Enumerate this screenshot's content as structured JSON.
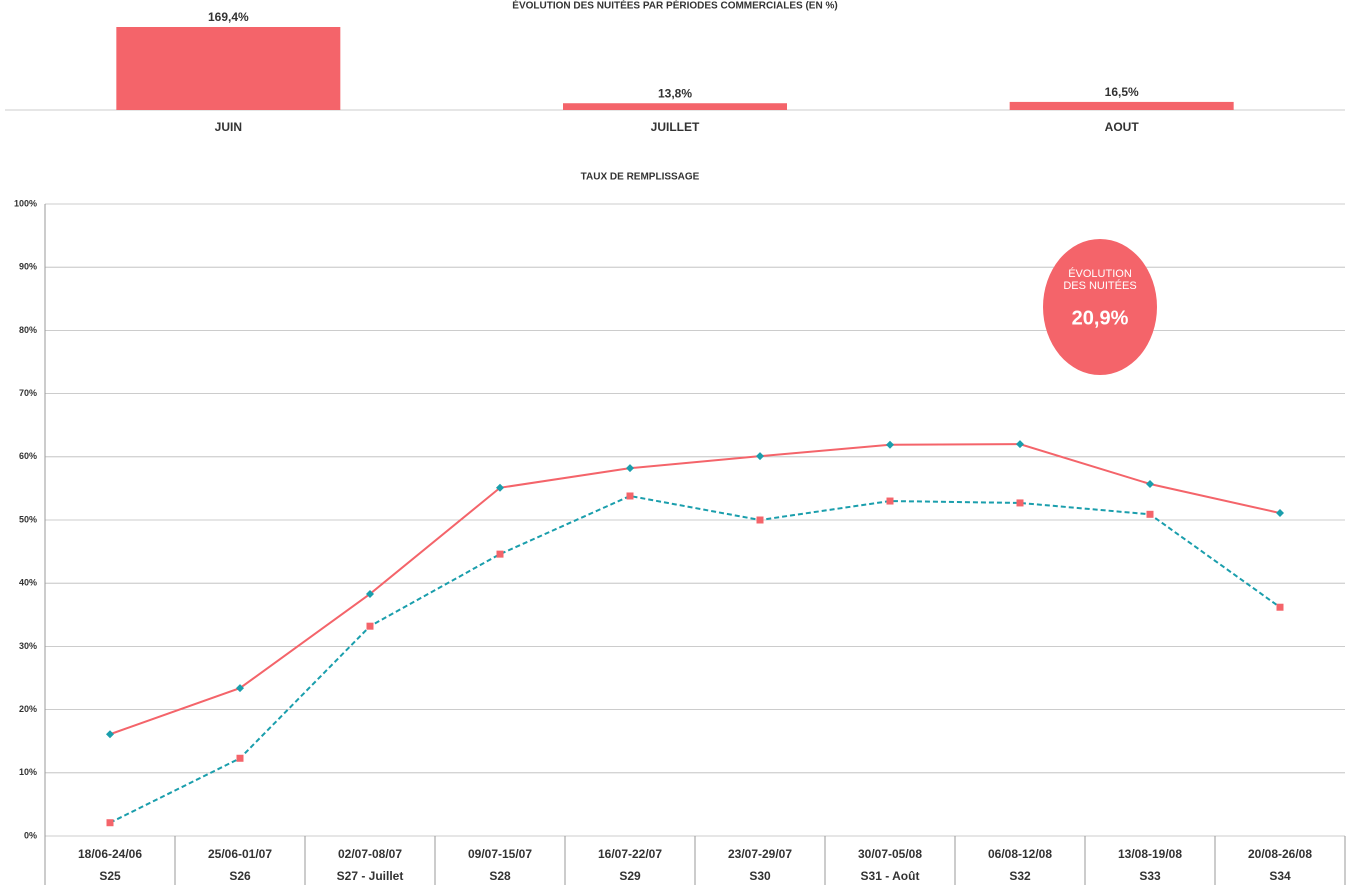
{
  "chart_data": [
    {
      "type": "bar",
      "title": "ÉVOLUTION DES NUITÉES PAR PÉRIODES COMMERCIALES (EN %)",
      "categories": [
        "JUIN",
        "JUILLET",
        "AOUT"
      ],
      "values": [
        169.4,
        13.8,
        16.5
      ],
      "value_labels": [
        "169,4%",
        "13,8%",
        "16,5%"
      ],
      "color": "#f4646a"
    },
    {
      "type": "line",
      "title": "TAUX DE REMPLISSAGE",
      "categories": [
        "18/06-24/06",
        "25/06-01/07",
        "02/07-08/07",
        "09/07-15/07",
        "16/07-22/07",
        "23/07-29/07",
        "30/07-05/08",
        "06/08-12/08",
        "13/08-19/08",
        "20/08-26/08"
      ],
      "sub_categories": [
        "S25",
        "S26",
        "S27 - Juillet",
        "S28",
        "S29",
        "S30",
        "S31 - Août",
        "S32",
        "S33",
        "S34"
      ],
      "series": [
        {
          "color": "#f4646a",
          "marker_color": "#1a9eac",
          "marker": "diamond",
          "dash": false,
          "values": [
            16.1,
            23.4,
            38.3,
            55.1,
            58.2,
            60.1,
            61.9,
            62.0,
            55.7,
            51.1
          ]
        },
        {
          "color": "#1a9eac",
          "marker_color": "#f4646a",
          "marker": "square",
          "dash": true,
          "values": [
            2.1,
            12.3,
            33.2,
            44.6,
            53.8,
            50.0,
            53.0,
            52.7,
            50.9,
            36.2
          ]
        }
      ],
      "ylim": [
        0,
        100
      ],
      "yticks": [
        {
          "value": 0,
          "label": "0%"
        },
        {
          "value": 10,
          "label": "10%"
        },
        {
          "value": 20,
          "label": "20%"
        },
        {
          "value": 30,
          "label": "30%"
        },
        {
          "value": 40,
          "label": "40%"
        },
        {
          "value": 50,
          "label": "50%"
        },
        {
          "value": 60,
          "label": "60%"
        },
        {
          "value": 70,
          "label": "70%"
        },
        {
          "value": 80,
          "label": "80%"
        },
        {
          "value": 90,
          "label": "90%"
        },
        {
          "value": 100,
          "label": "100%"
        }
      ],
      "grid": true,
      "annotation": {
        "lines": [
          "ÉVOLUTION",
          "DES NUITÉES"
        ],
        "value_label": "20,9%",
        "color": "#f4646a"
      }
    }
  ]
}
